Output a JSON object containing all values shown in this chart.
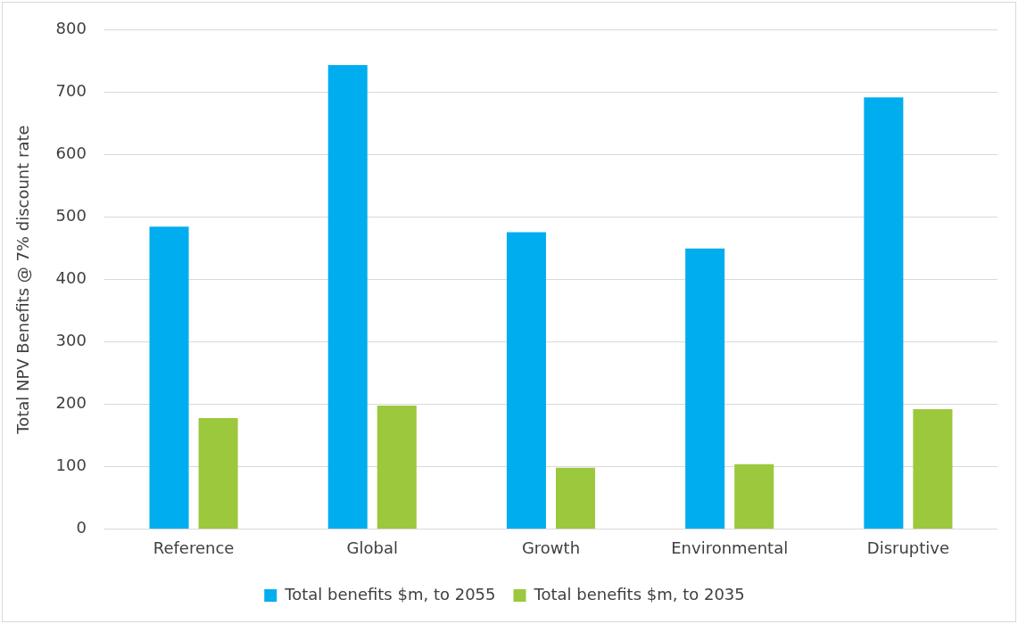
{
  "chart_data": {
    "type": "bar",
    "ylabel": "Total NPV Benefits @ 7% discount rate",
    "categories": [
      "Reference",
      "Global",
      "Growth",
      "Environmental",
      "Disruptive"
    ],
    "series": [
      {
        "name": "Total benefits $m, to 2055",
        "color": "#00aeef",
        "values": [
          485,
          744,
          476,
          450,
          692
        ]
      },
      {
        "name": "Total benefits $m, to 2035",
        "color": "#9bc83c",
        "values": [
          178,
          198,
          98,
          104,
          192
        ]
      }
    ],
    "ylim": [
      0,
      800
    ],
    "yticks": [
      0,
      100,
      200,
      300,
      400,
      500,
      600,
      700,
      800
    ],
    "grid": "y",
    "legend": "bottom"
  }
}
